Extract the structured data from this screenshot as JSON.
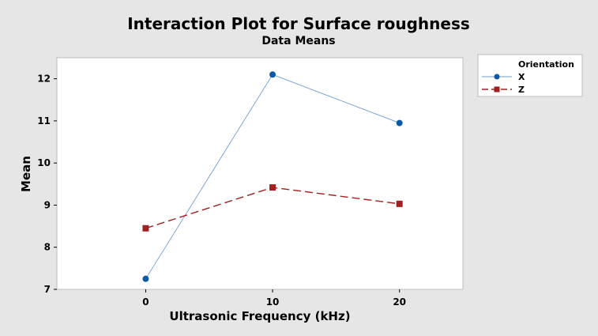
{
  "chart_data": {
    "type": "line",
    "title": "Interaction Plot for Surface roughness",
    "subtitle": "Data Means",
    "xlabel": "Ultrasonic Frequency (kHz)",
    "ylabel": "Mean",
    "categories": [
      "0",
      "10",
      "20"
    ],
    "x": [
      0,
      10,
      20
    ],
    "xlim": [
      -7,
      25
    ],
    "ylim": [
      7,
      12.5
    ],
    "yticks": [
      7,
      8,
      9,
      10,
      11,
      12
    ],
    "yticklabels": [
      "7",
      "8",
      "9",
      "10",
      "11",
      "12"
    ],
    "grid": false,
    "legend": {
      "title": "Orientation",
      "placement": "right"
    },
    "series": [
      {
        "name": "X",
        "values": [
          7.25,
          12.1,
          10.95
        ],
        "color": "#0b5aa6",
        "line_color": "#6f9fd2",
        "marker": "circle",
        "linestyle": "solid"
      },
      {
        "name": "Z",
        "values": [
          8.45,
          9.42,
          9.03
        ],
        "color": "#a32020",
        "line_color": "#a32020",
        "marker": "square",
        "linestyle": "dashed"
      }
    ]
  }
}
